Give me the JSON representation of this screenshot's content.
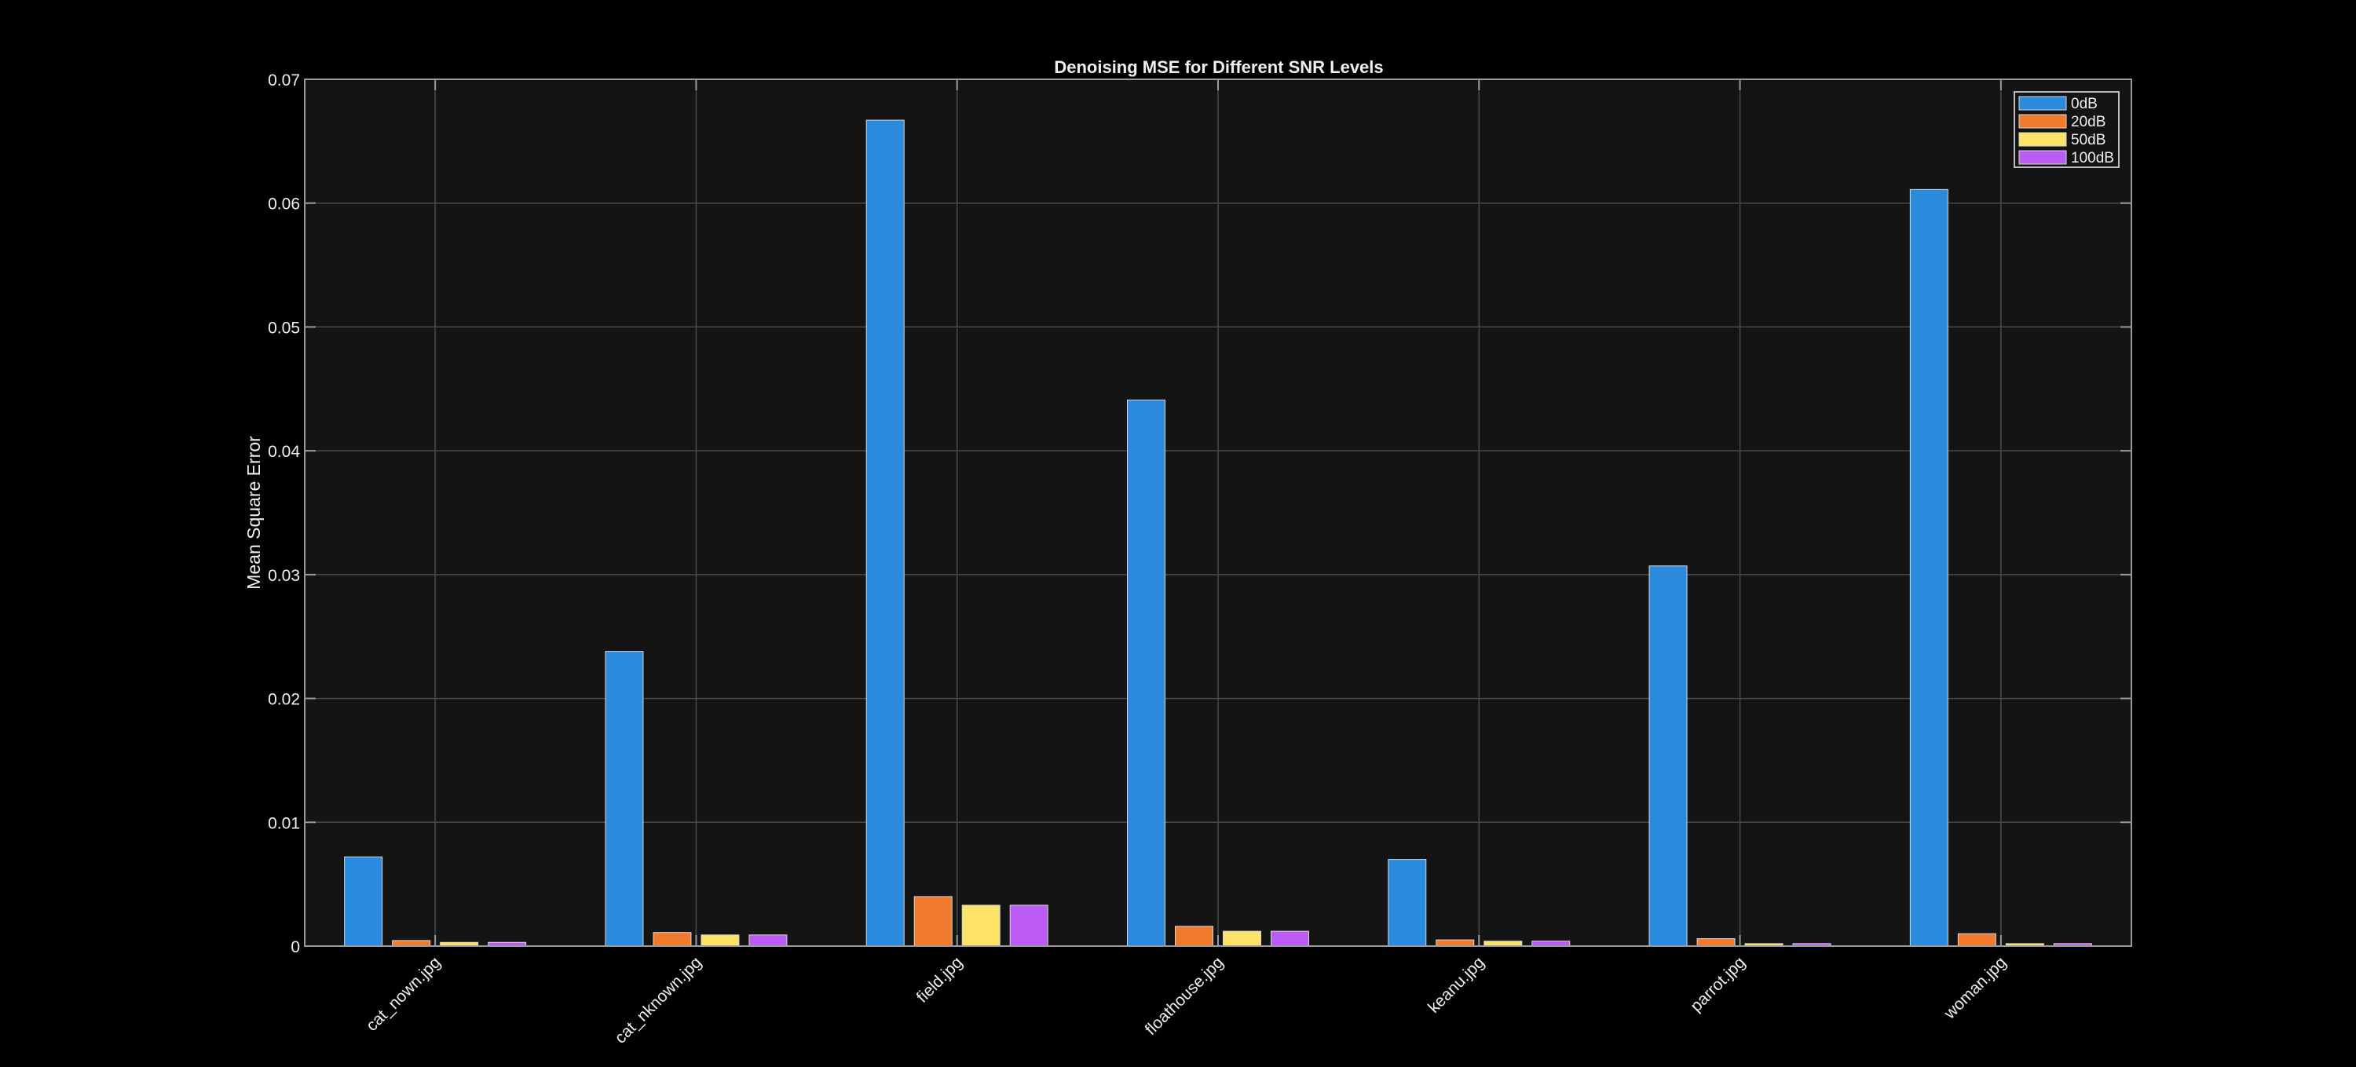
{
  "chart_data": {
    "type": "bar",
    "title": "Denoising MSE for Different SNR Levels",
    "xlabel": "",
    "ylabel": "Mean Square Error",
    "ylim": [
      0,
      0.07
    ],
    "yticks": [
      0,
      0.01,
      0.02,
      0.03,
      0.04,
      0.05,
      0.06,
      0.07
    ],
    "ytick_labels": [
      "0",
      "0.01",
      "0.02",
      "0.03",
      "0.04",
      "0.05",
      "0.06",
      "0.07"
    ],
    "grid": true,
    "legend_position": "top-right",
    "background": "#141414",
    "categories": [
      "cat_nown.jpg",
      "cat_nknown.jpg",
      "field.jpg",
      "floathouse.jpg",
      "keanu.jpg",
      "parrot.jpg",
      "woman.jpg"
    ],
    "series": [
      {
        "name": "0dB",
        "color": "#2a8ade",
        "values": [
          0.0072,
          0.0238,
          0.0667,
          0.0441,
          0.007,
          0.0307,
          0.0611
        ]
      },
      {
        "name": "20dB",
        "color": "#f07a2e",
        "values": [
          0.00045,
          0.0011,
          0.004,
          0.0016,
          0.0005,
          0.0006,
          0.001
        ]
      },
      {
        "name": "50dB",
        "color": "#fce266",
        "values": [
          0.0003,
          0.0009,
          0.0033,
          0.0012,
          0.0004,
          0.0002,
          0.0002
        ]
      },
      {
        "name": "100dB",
        "color": "#bd5cf5",
        "values": [
          0.0003,
          0.0009,
          0.0033,
          0.0012,
          0.0004,
          0.0002,
          0.0002
        ]
      }
    ]
  }
}
